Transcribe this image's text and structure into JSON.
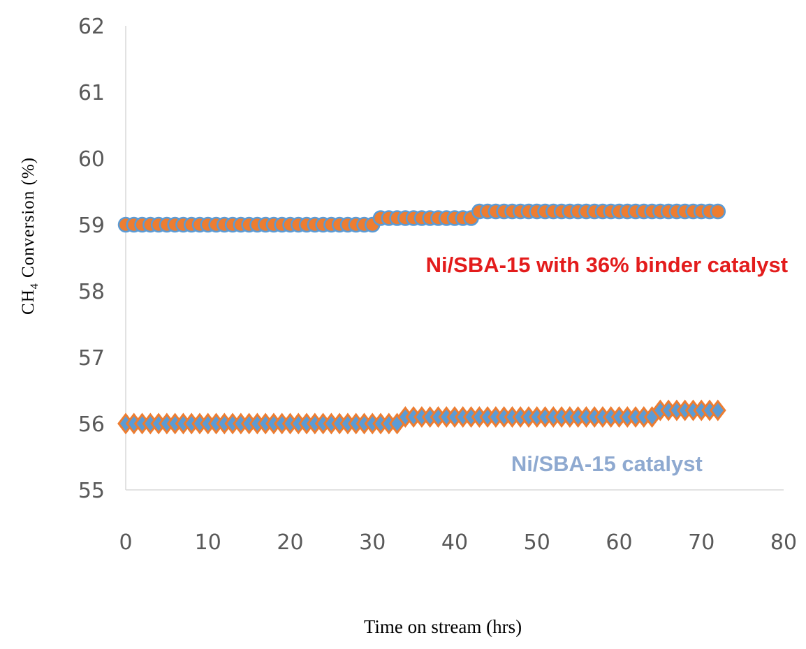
{
  "chart_data": {
    "type": "scatter",
    "xlabel": "Time on stream (hrs)",
    "ylabel": {
      "prefix": "CH",
      "subscript": "4",
      "suffix": " Conversion (%)"
    },
    "xlim": [
      0,
      80
    ],
    "ylim": [
      55,
      62
    ],
    "x_ticks": [
      "0",
      "10",
      "20",
      "30",
      "40",
      "50",
      "60",
      "70",
      "80"
    ],
    "y_ticks": [
      "55",
      "56",
      "57",
      "58",
      "59",
      "60",
      "61",
      "62"
    ],
    "grid": false,
    "series": [
      {
        "marker": "circle",
        "fill_color": "#ED7D31",
        "edge_color": "#5B9BD5",
        "segments": [
          {
            "x_start": 0,
            "x_end": 30,
            "y": 59.0
          },
          {
            "x_start": 31,
            "x_end": 42,
            "y": 59.1
          },
          {
            "x_start": 43,
            "x_end": 72,
            "y": 59.2
          }
        ]
      },
      {
        "marker": "diamond",
        "fill_color": "#5B9BD5",
        "edge_color": "#ED7D31",
        "segments": [
          {
            "x_start": 0,
            "x_end": 33,
            "y": 56.0
          },
          {
            "x_start": 34,
            "x_end": 64,
            "y": 56.1
          },
          {
            "x_start": 65,
            "x_end": 72,
            "y": 56.2
          }
        ]
      }
    ],
    "annotations": [
      {
        "text": "Ni/SBA-15 with 36% binder catalyst",
        "color": "#E31C1C",
        "x": 58.5,
        "y": 58.4
      },
      {
        "text": "Ni/SBA-15 catalyst",
        "color": "#8EA9D0",
        "x": 58.5,
        "y": 55.4
      }
    ]
  }
}
